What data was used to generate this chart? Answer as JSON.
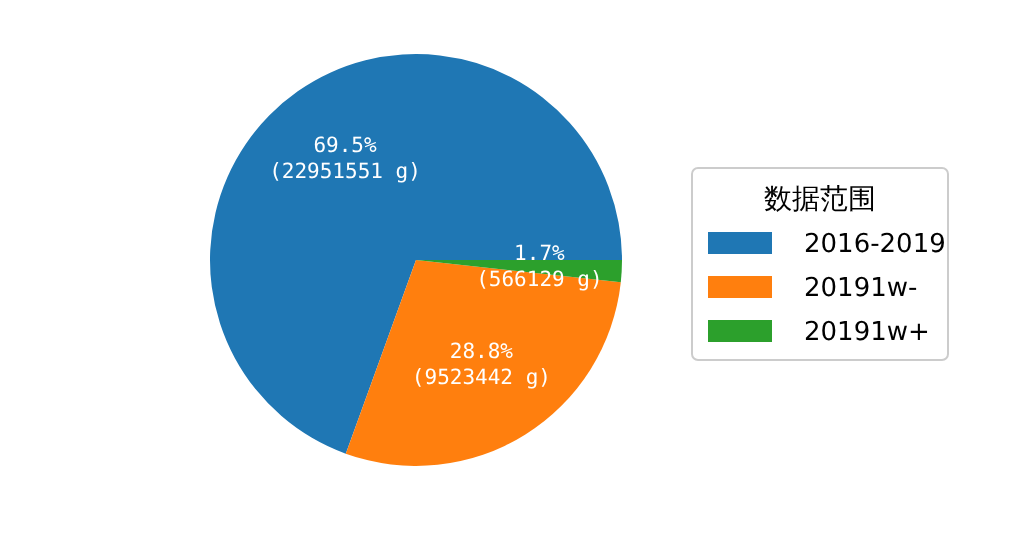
{
  "chart_data": {
    "type": "pie",
    "legend_title": "数据范围",
    "legend": "right",
    "categories": [
      "2016-2019",
      "20191w-",
      "20191w+"
    ],
    "values": [
      22951551,
      9523442,
      566129
    ],
    "colors": [
      "#1f77b4",
      "#ff7f0e",
      "#2ca02c"
    ],
    "value_labels": [
      "69.5%\n(22951551 g)",
      "28.8%\n(9523442 g)",
      "1.7%\n(566129 g)"
    ]
  }
}
